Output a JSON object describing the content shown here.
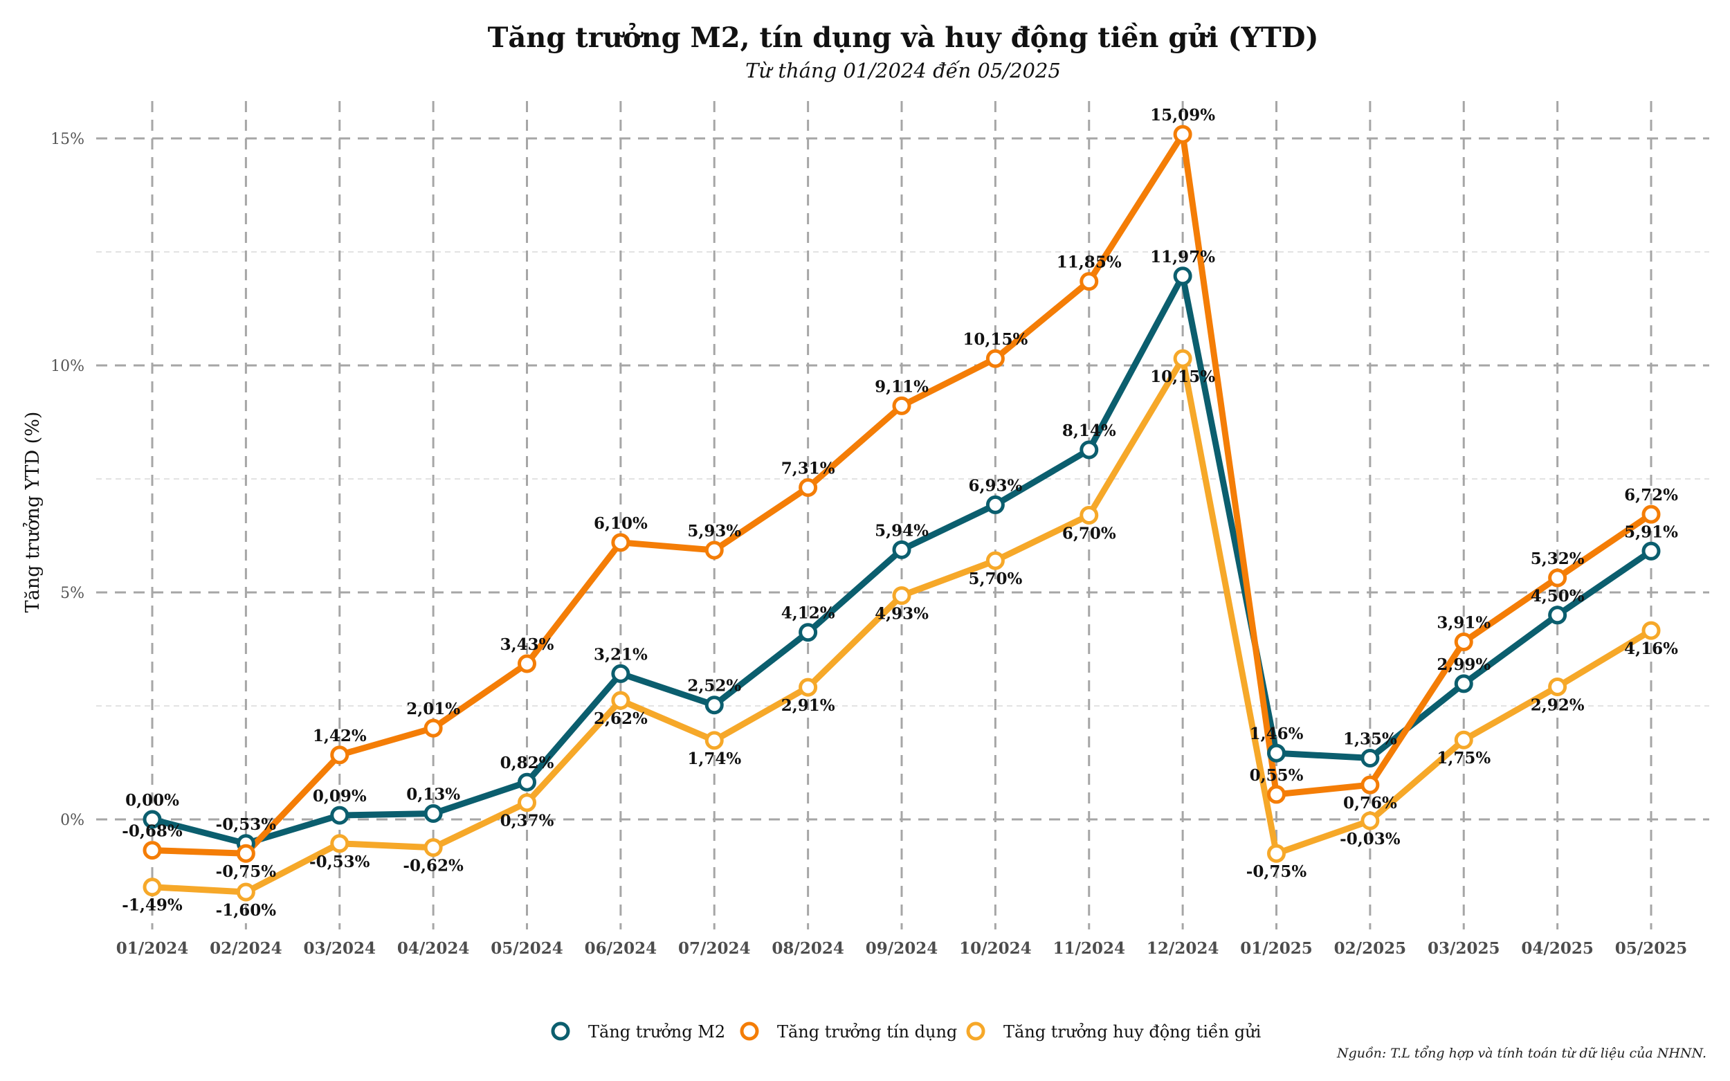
{
  "chart_data": {
    "type": "line",
    "title": "Tăng trưởng M2, tín dụng và huy động tiền gửi (YTD)",
    "subtitle": "Từ tháng 01/2024 đến 05/2025",
    "xlabel": "",
    "ylabel": "Tăng trưởng YTD (%)",
    "ylim": [
      -2,
      15.5
    ],
    "y_ticks": [
      {
        "value": 0,
        "label": "0%"
      },
      {
        "value": 5,
        "label": "5%"
      },
      {
        "value": 10,
        "label": "10%"
      },
      {
        "value": 15,
        "label": "15%"
      }
    ],
    "y_minor_ticks": [
      2.5,
      7.5,
      12.5
    ],
    "grid": true,
    "categories": [
      "01/2024",
      "02/2024",
      "03/2024",
      "04/2024",
      "05/2024",
      "06/2024",
      "07/2024",
      "08/2024",
      "09/2024",
      "10/2024",
      "11/2024",
      "12/2024",
      "01/2025",
      "02/2025",
      "03/2025",
      "04/2025",
      "05/2025"
    ],
    "series": [
      {
        "name": "Tăng trưởng M2",
        "color": "#0b5e6e",
        "values": [
          0.0,
          -0.53,
          0.09,
          0.13,
          0.82,
          3.21,
          2.52,
          4.12,
          5.94,
          6.93,
          8.14,
          11.97,
          1.46,
          1.35,
          2.99,
          4.5,
          5.91
        ],
        "labels": [
          "0,00%",
          "-0,53%",
          "0,09%",
          "0,13%",
          "0,82%",
          "3,21%",
          "2,52%",
          "4,12%",
          "5,94%",
          "6,93%",
          "8,14%",
          "11,97%",
          "1,46%",
          "1,35%",
          "2,99%",
          "4,50%",
          "5,91%"
        ],
        "label_pos": [
          "above",
          "above",
          "above",
          "above",
          "above",
          "above",
          "above",
          "above",
          "above",
          "above",
          "above",
          "above",
          "above",
          "above",
          "above",
          "above",
          "above"
        ]
      },
      {
        "name": "Tăng trưởng tín dụng",
        "color": "#f47d06",
        "values": [
          -0.68,
          -0.75,
          1.42,
          2.01,
          3.43,
          6.1,
          5.93,
          7.31,
          9.11,
          10.15,
          11.85,
          15.09,
          0.55,
          0.76,
          3.91,
          5.32,
          6.72
        ],
        "labels": [
          "-0,68%",
          "-0,75%",
          "1,42%",
          "2,01%",
          "3,43%",
          "6,10%",
          "5,93%",
          "7,31%",
          "9,11%",
          "10,15%",
          "11,85%",
          "15,09%",
          "0,55%",
          "0,76%",
          "3,91%",
          "5,32%",
          "6,72%"
        ],
        "label_pos": [
          "above",
          "below",
          "above",
          "above",
          "above",
          "above",
          "above",
          "above",
          "above",
          "above",
          "above",
          "above",
          "above",
          "below",
          "above",
          "above",
          "above"
        ]
      },
      {
        "name": "Tăng trưởng huy động tiền gửi",
        "color": "#f6a829",
        "values": [
          -1.49,
          -1.6,
          -0.53,
          -0.62,
          0.37,
          2.62,
          1.74,
          2.91,
          4.93,
          5.7,
          6.7,
          10.15,
          -0.75,
          -0.03,
          1.75,
          2.92,
          4.16
        ],
        "labels": [
          "-1,49%",
          "-1,60%",
          "-0,53%",
          "-0,62%",
          "0,37%",
          "2,62%",
          "1,74%",
          "2,91%",
          "4,93%",
          "5,70%",
          "6,70%",
          "10,15%",
          "-0,75%",
          "-0,03%",
          "1,75%",
          "2,92%",
          "4,16%"
        ],
        "label_pos": [
          "below",
          "below",
          "below",
          "below",
          "below",
          "below",
          "below",
          "below",
          "below",
          "below",
          "below",
          "below",
          "below",
          "below",
          "below",
          "below",
          "below"
        ]
      }
    ],
    "legend": {
      "position": "bottom",
      "entries": [
        "Tăng trưởng M2",
        "Tăng trưởng tín dụng",
        "Tăng trưởng huy động tiền gửi"
      ]
    },
    "source": "Nguồn: T.L tổng hợp và tính toán từ dữ liệu của NHNN."
  }
}
